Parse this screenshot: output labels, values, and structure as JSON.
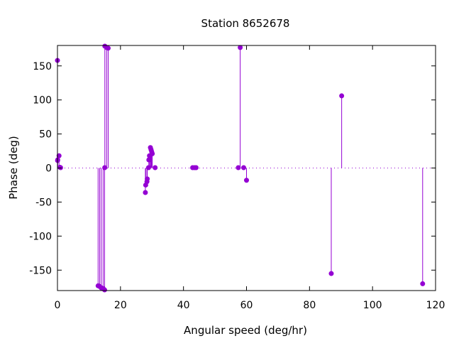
{
  "chart_data": {
    "type": "stem",
    "title": "Station 8652678",
    "xlabel": "Angular speed (deg/hr)",
    "ylabel": "Phase (deg)",
    "xlim": [
      0,
      120
    ],
    "ylim": [
      -180,
      180
    ],
    "xticks": [
      0,
      20,
      40,
      60,
      80,
      100,
      120
    ],
    "yticks": [
      -150,
      -100,
      -50,
      0,
      50,
      100,
      150
    ],
    "grid": false,
    "zero_line": true,
    "color": "#9400d3",
    "points": [
      {
        "x": 0.0,
        "y": 158
      },
      {
        "x": 0.04,
        "y": 11
      },
      {
        "x": 0.08,
        "y": 12
      },
      {
        "x": 0.5,
        "y": 18
      },
      {
        "x": 0.8,
        "y": 1
      },
      {
        "x": 1.0,
        "y": 0.5
      },
      {
        "x": 12.9,
        "y": -173
      },
      {
        "x": 13.4,
        "y": -174
      },
      {
        "x": 13.9,
        "y": -176
      },
      {
        "x": 14.5,
        "y": -177
      },
      {
        "x": 14.96,
        "y": -179
      },
      {
        "x": 15.0,
        "y": 0.5
      },
      {
        "x": 15.04,
        "y": 179
      },
      {
        "x": 15.6,
        "y": 177
      },
      {
        "x": 16.1,
        "y": 176
      },
      {
        "x": 27.9,
        "y": -36
      },
      {
        "x": 28.0,
        "y": -25
      },
      {
        "x": 28.4,
        "y": -20
      },
      {
        "x": 28.5,
        "y": -16
      },
      {
        "x": 28.9,
        "y": 0.5
      },
      {
        "x": 29.0,
        "y": 12
      },
      {
        "x": 29.2,
        "y": 18
      },
      {
        "x": 29.5,
        "y": 30
      },
      {
        "x": 29.7,
        "y": 27
      },
      {
        "x": 29.9,
        "y": 24
      },
      {
        "x": 30.1,
        "y": 21
      },
      {
        "x": 31.0,
        "y": 0.5
      },
      {
        "x": 42.9,
        "y": 0.5
      },
      {
        "x": 43.5,
        "y": 0.5
      },
      {
        "x": 44.0,
        "y": 0.5
      },
      {
        "x": 57.4,
        "y": 0.5
      },
      {
        "x": 58.0,
        "y": 177
      },
      {
        "x": 59.1,
        "y": 0.5
      },
      {
        "x": 60.0,
        "y": -18
      },
      {
        "x": 86.9,
        "y": -155
      },
      {
        "x": 90.2,
        "y": 106
      },
      {
        "x": 115.9,
        "y": -170
      }
    ]
  }
}
